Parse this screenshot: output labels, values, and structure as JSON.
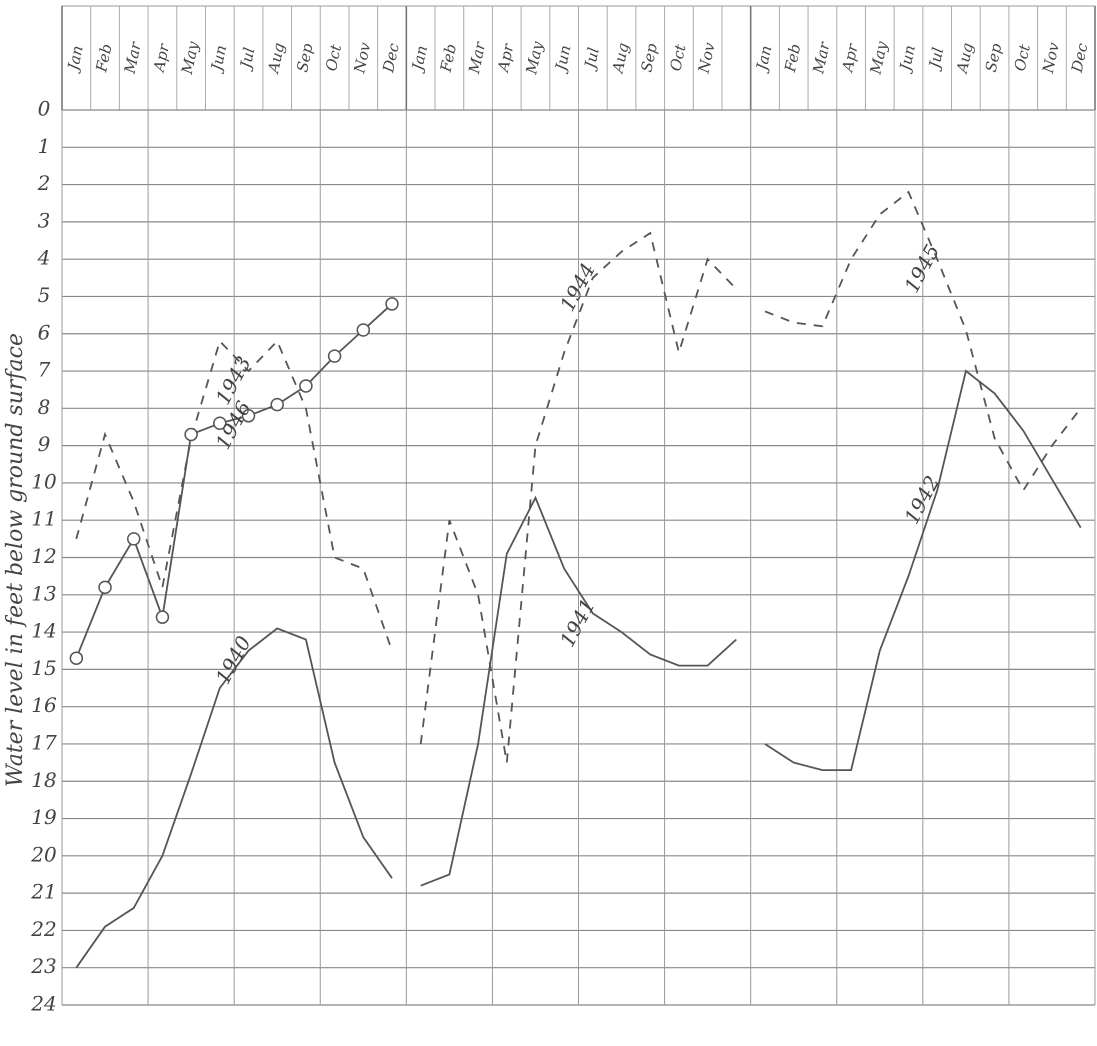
{
  "chart_data": {
    "type": "line",
    "y_axis_label": "Water level in feet below ground surface",
    "categories": [
      "Jan",
      "Feb",
      "Mar",
      "Apr",
      "May",
      "Jun",
      "Jul",
      "Aug",
      "Sep",
      "Oct",
      "Nov",
      "Dec",
      "Jan",
      "Feb",
      "Mar",
      "Apr",
      "May",
      "Jun",
      "Jul",
      "Aug",
      "Sep",
      "Oct",
      "Nov",
      null,
      "Jan",
      "Feb",
      "Mar",
      "Apr",
      "May",
      "Jun",
      "Jul",
      "Aug",
      "Sep",
      "Oct",
      "Nov",
      "Dec"
    ],
    "ylim": [
      24,
      0
    ],
    "yticks": [
      0,
      1,
      2,
      3,
      4,
      5,
      6,
      7,
      8,
      9,
      10,
      11,
      12,
      13,
      14,
      15,
      16,
      17,
      18,
      19,
      20,
      21,
      22,
      23,
      24
    ],
    "grid": true,
    "series": [
      {
        "name": "1940",
        "style": "solid",
        "color": "#555555",
        "values": [
          23.0,
          21.9,
          21.4,
          20.0,
          17.8,
          15.5,
          14.5,
          13.9,
          14.2,
          17.5,
          19.5,
          20.6,
          null,
          null,
          null,
          null,
          null,
          null,
          null,
          null,
          null,
          null,
          null,
          null,
          null,
          null,
          null,
          null,
          null,
          null,
          null,
          null,
          null,
          null,
          null,
          null
        ]
      },
      {
        "name": "1941",
        "style": "solid",
        "color": "#555555",
        "values": [
          null,
          null,
          null,
          null,
          null,
          null,
          null,
          null,
          null,
          null,
          null,
          null,
          20.8,
          20.5,
          17.0,
          11.9,
          10.4,
          12.3,
          13.5,
          14.0,
          14.6,
          14.9,
          14.9,
          14.2,
          null,
          null,
          null,
          null,
          null,
          null,
          null,
          null,
          null,
          null,
          null,
          null
        ]
      },
      {
        "name": "1942",
        "style": "solid",
        "color": "#555555",
        "values": [
          null,
          null,
          null,
          null,
          null,
          null,
          null,
          null,
          null,
          null,
          null,
          null,
          null,
          null,
          null,
          null,
          null,
          null,
          null,
          null,
          null,
          null,
          null,
          null,
          17.0,
          17.5,
          17.7,
          17.7,
          14.5,
          12.5,
          10.2,
          7.0,
          7.6,
          8.6,
          9.9,
          11.2
        ]
      },
      {
        "name": "1943",
        "style": "dashed",
        "color": "#555555",
        "values": [
          11.5,
          8.7,
          10.5,
          12.8,
          8.8,
          6.2,
          7.0,
          6.2,
          8.0,
          12.0,
          12.3,
          14.5,
          null,
          null,
          null,
          null,
          null,
          null,
          null,
          null,
          null,
          null,
          null,
          null,
          null,
          null,
          null,
          null,
          null,
          null,
          null,
          null,
          null,
          null,
          null,
          null
        ]
      },
      {
        "name": "1944",
        "style": "dashed",
        "color": "#555555",
        "values": [
          null,
          null,
          null,
          null,
          null,
          null,
          null,
          null,
          null,
          null,
          null,
          null,
          17.0,
          11.0,
          13.0,
          17.5,
          9.0,
          6.5,
          4.5,
          3.8,
          3.3,
          6.5,
          4.0,
          4.8,
          null,
          null,
          null,
          null,
          null,
          null,
          null,
          null,
          null,
          null,
          null,
          null
        ]
      },
      {
        "name": "1945",
        "style": "dashed",
        "color": "#555555",
        "values": [
          null,
          null,
          null,
          null,
          null,
          null,
          null,
          null,
          null,
          null,
          null,
          null,
          null,
          null,
          null,
          null,
          null,
          null,
          null,
          null,
          null,
          null,
          null,
          null,
          5.4,
          5.7,
          5.8,
          4.0,
          2.8,
          2.2,
          4.0,
          5.9,
          8.8,
          10.2,
          9.0,
          8.0
        ]
      },
      {
        "name": "1946",
        "style": "circles",
        "color": "#555555",
        "values": [
          14.7,
          12.8,
          11.5,
          13.6,
          8.7,
          8.4,
          8.2,
          7.9,
          7.4,
          6.6,
          5.9,
          5.2,
          null,
          null,
          null,
          null,
          null,
          null,
          null,
          null,
          null,
          null,
          null,
          null,
          null,
          null,
          null,
          null,
          null,
          null,
          null,
          null,
          null,
          null,
          null,
          null
        ]
      }
    ]
  }
}
